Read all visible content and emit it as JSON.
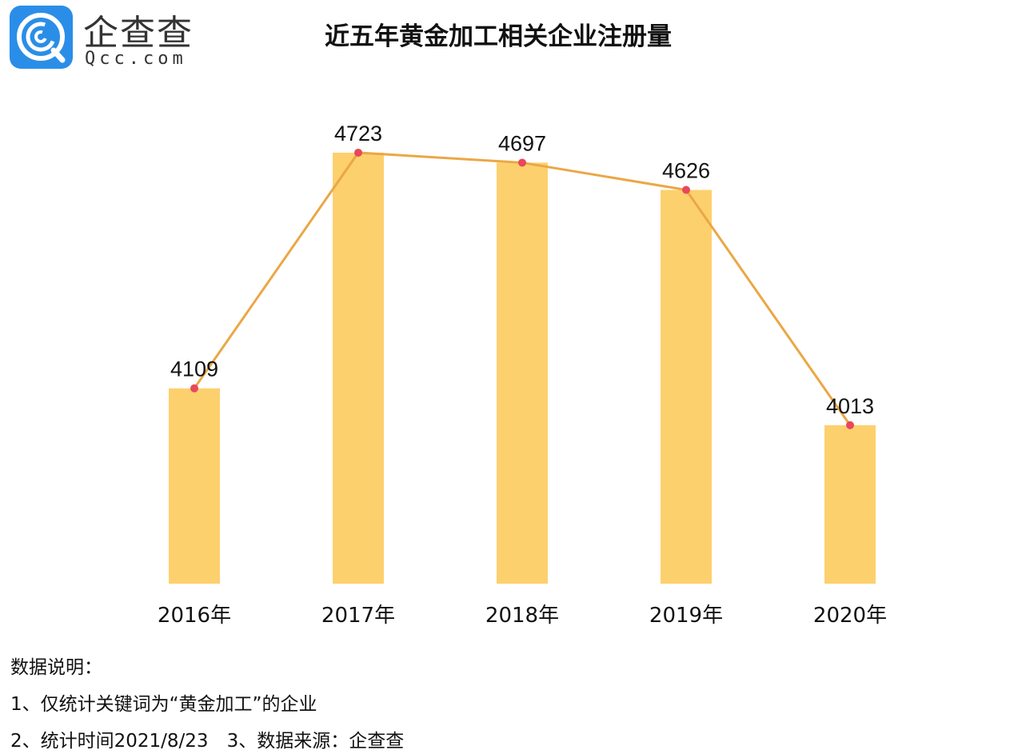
{
  "logo": {
    "cn": "企查查",
    "en": "Qcc.com"
  },
  "chart_data": {
    "type": "bar",
    "title": "近五年黄金加工相关企业注册量",
    "categories": [
      "2016年",
      "2017年",
      "2018年",
      "2019年",
      "2020年"
    ],
    "values": [
      4109,
      4723,
      4697,
      4626,
      4013
    ],
    "series": [
      {
        "name": "bar",
        "type": "bar",
        "values": [
          4109,
          4723,
          4697,
          4626,
          4013
        ]
      },
      {
        "name": "line",
        "type": "line",
        "values": [
          4109,
          4723,
          4697,
          4626,
          4013
        ]
      }
    ],
    "xlabel": "",
    "ylabel": "",
    "ylim": [
      3600,
      4800
    ],
    "grid": false,
    "colors": {
      "bar": "#FDD06E",
      "line": "#EBA745",
      "point": "#E8485A"
    }
  },
  "notes": {
    "heading": "数据说明：",
    "line1": "1、仅统计关键词为“黄金加工”的企业",
    "line2": "2、统计时间2021/8/23　3、数据来源：企查查"
  }
}
